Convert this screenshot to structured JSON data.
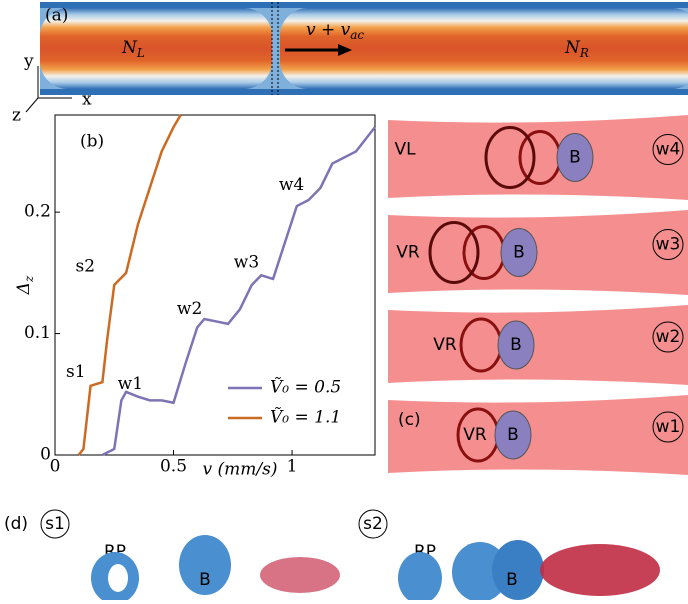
{
  "panel_a": {
    "label": "(a)",
    "left": {
      "main": "N",
      "sub": "L"
    },
    "right": {
      "main": "N",
      "sub": "R"
    },
    "velocity": {
      "main": "v + v",
      "sub": "ac"
    },
    "axes": [
      "y",
      "x",
      "z"
    ]
  },
  "chart_data": {
    "type": "line",
    "panel_label": "(b)",
    "xlabel": "v (mm/s)",
    "ylabel": {
      "main": "Δ",
      "sub": "z"
    },
    "xlim": [
      0,
      1.35
    ],
    "ylim": [
      0,
      0.28
    ],
    "xticks": [
      0,
      0.5,
      1
    ],
    "yticks": [
      0,
      0.1,
      0.2
    ],
    "legend": "lower right",
    "series": [
      {
        "name": "Ṽ₀ = 0.5",
        "color": "#7f73b5",
        "x": [
          0.2,
          0.25,
          0.28,
          0.3,
          0.35,
          0.4,
          0.45,
          0.5,
          0.55,
          0.6,
          0.63,
          0.68,
          0.73,
          0.78,
          0.83,
          0.87,
          0.92,
          0.97,
          1.02,
          1.07,
          1.12,
          1.17,
          1.22,
          1.27,
          1.35
        ],
        "values": [
          0,
          0.005,
          0.045,
          0.052,
          0.048,
          0.045,
          0.045,
          0.043,
          0.075,
          0.105,
          0.112,
          0.11,
          0.108,
          0.12,
          0.14,
          0.148,
          0.145,
          0.175,
          0.205,
          0.21,
          0.22,
          0.24,
          0.245,
          0.25,
          0.27
        ]
      },
      {
        "name": "Ṽ₀ = 1.1",
        "color": "#cc6a22",
        "x": [
          0.1,
          0.12,
          0.15,
          0.2,
          0.22,
          0.25,
          0.3,
          0.35,
          0.4,
          0.45,
          0.5,
          0.53
        ],
        "values": [
          0,
          0.005,
          0.057,
          0.06,
          0.095,
          0.14,
          0.15,
          0.19,
          0.22,
          0.25,
          0.27,
          0.28
        ]
      }
    ],
    "annotations": [
      "s1",
      "s2",
      "w1",
      "w2",
      "w3",
      "w4"
    ]
  },
  "panel_c": {
    "label": "(c)",
    "strips": [
      {
        "vortex": "VL",
        "body": "B",
        "state": "w4"
      },
      {
        "vortex": "VR",
        "body": "B",
        "state": "w3"
      },
      {
        "vortex": "VR",
        "body": "B",
        "state": "w2"
      },
      {
        "vortex": "VR",
        "body": "B",
        "state": "w1"
      }
    ]
  },
  "panel_d": {
    "label": "(d)",
    "left": {
      "state": "s1",
      "rp": "RP",
      "body": "B"
    },
    "right": {
      "state": "s2",
      "rp1": "RP",
      "rp2": "RP",
      "body": "B"
    }
  }
}
